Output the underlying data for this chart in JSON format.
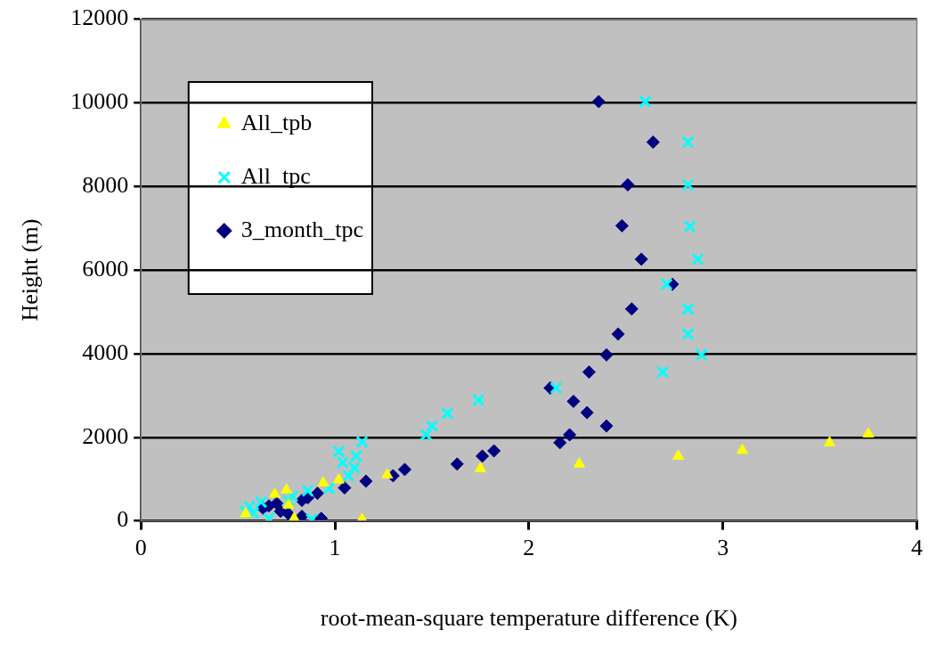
{
  "chart_data": {
    "type": "scatter",
    "xlabel": "root-mean-square temperature difference (K)",
    "ylabel": "Height (m)",
    "xlim": [
      0,
      4
    ],
    "xticks": [
      0,
      1,
      2,
      3,
      4
    ],
    "ylim": [
      0,
      12000
    ],
    "yticks": [
      0,
      2000,
      4000,
      6000,
      8000,
      10000,
      12000
    ],
    "grid": "y",
    "legend": "top left",
    "series": [
      {
        "name": "All_tpb",
        "color": "#ffff00",
        "marker": "triangle",
        "x": [
          3.75,
          3.55,
          3.1,
          2.77,
          2.26,
          1.75,
          1.27,
          1.14,
          1.02,
          0.94,
          0.75,
          0.69,
          0.79,
          0.54,
          0.76
        ],
        "values": [
          2080,
          1870,
          1690,
          1550,
          1360,
          1250,
          1100,
          40,
          980,
          910,
          740,
          640,
          60,
          170,
          380
        ]
      },
      {
        "name": "All_tpc",
        "color": "#00ffff",
        "marker": "cross",
        "x": [
          2.6,
          2.82,
          2.82,
          2.83,
          2.87,
          2.71,
          2.82,
          2.82,
          2.89,
          2.69,
          2.14,
          1.74,
          1.58,
          1.5,
          1.47,
          1.14,
          1.02,
          1.04,
          1.11,
          1.1,
          1.07,
          0.97,
          0.86,
          0.78,
          0.76,
          0.62,
          0.56,
          0.58,
          0.66,
          0.88,
          0.54
        ],
        "values": [
          10030,
          9060,
          8040,
          7040,
          6260,
          5660,
          5070,
          4470,
          3970,
          3560,
          3180,
          2890,
          2570,
          2270,
          2060,
          1890,
          1660,
          1400,
          1550,
          1270,
          1080,
          780,
          720,
          590,
          490,
          450,
          340,
          190,
          60,
          40,
          230
        ]
      },
      {
        "name": "3_month_tpc",
        "color": "#000080",
        "marker": "diamond",
        "x": [
          2.36,
          2.64,
          2.51,
          2.48,
          2.58,
          2.74,
          2.53,
          2.46,
          2.4,
          2.31,
          2.11,
          2.23,
          2.3,
          2.4,
          2.21,
          2.16,
          1.82,
          1.76,
          1.63,
          1.36,
          1.3,
          1.16,
          1.05,
          0.91,
          0.86,
          0.83,
          0.7,
          0.66,
          0.63,
          0.72,
          0.76,
          0.83,
          0.93
        ],
        "values": [
          10030,
          9060,
          8040,
          7060,
          6260,
          5660,
          5070,
          4470,
          3970,
          3560,
          3180,
          2860,
          2590,
          2270,
          2060,
          1870,
          1675,
          1550,
          1360,
          1230,
          1080,
          950,
          790,
          660,
          550,
          490,
          420,
          360,
          300,
          230,
          170,
          110,
          60
        ]
      }
    ]
  }
}
